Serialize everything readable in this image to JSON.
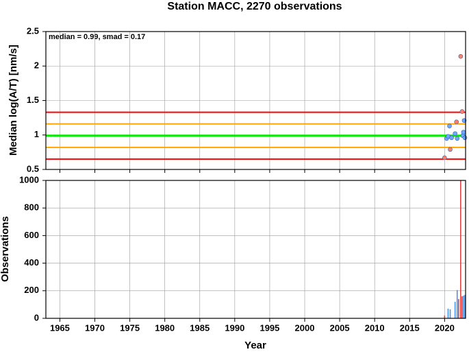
{
  "chart_data": [
    {
      "type": "scatter",
      "title": "Station MACC, 2270 observations",
      "ylabel": "Median log(A/T) [nm/s]",
      "annotation": "median = 0.99, smad = 0.17",
      "x": [
        2020.0,
        2020.3,
        2020.5,
        2020.7,
        2020.8,
        2021.0,
        2021.5,
        2021.7,
        2021.8,
        2022.3,
        2022.5,
        2022.6,
        2022.7,
        2022.8,
        2022.9
      ],
      "values": [
        0.67,
        0.95,
        0.98,
        1.13,
        0.79,
        0.96,
        1.02,
        1.19,
        0.95,
        2.14,
        1.34,
        0.99,
        1.04,
        1.21,
        0.96
      ],
      "colors": [
        "#ff7f6e",
        "#6fa8ff",
        "#6fa8ff",
        "#6fa8ff",
        "#ff7f6e",
        "#6fa8ff",
        "#6fa8ff",
        "#ff7f6e",
        "#6fa8ff",
        "#ff7f6e",
        "#ff7f6e",
        "#6fa8ff",
        "#6fa8ff",
        "#6fa8ff",
        "#6fa8ff"
      ],
      "hlines": [
        {
          "value": 1.33,
          "color": "#ff0000"
        },
        {
          "value": 1.16,
          "color": "#ffa500"
        },
        {
          "value": 0.99,
          "color": "#00ee00"
        },
        {
          "value": 0.82,
          "color": "#ffa500"
        },
        {
          "value": 0.65,
          "color": "#ff0000"
        }
      ],
      "xlim": [
        1963,
        2023
      ],
      "xticks": [
        1965,
        1970,
        1975,
        1980,
        1985,
        1990,
        1995,
        2000,
        2005,
        2010,
        2015,
        2020
      ],
      "ylim": [
        0.5,
        2.5
      ],
      "yticks": [
        0.5,
        1.0,
        1.5,
        2.0,
        2.5
      ],
      "grid": true
    },
    {
      "type": "bar",
      "ylabel": "Observations",
      "xlabel": "Year",
      "x": [
        2020.0,
        2020.5,
        2020.8,
        2021.5,
        2021.8,
        2022.0,
        2022.3,
        2022.5,
        2022.7,
        2022.9
      ],
      "values": [
        20,
        70,
        65,
        120,
        205,
        140,
        1000,
        160,
        165,
        170
      ],
      "colors": [
        "#e04040",
        "#4a90e2",
        "#4a90e2",
        "#4a90e2",
        "#4a90e2",
        "#e04040",
        "#e04040",
        "#e04040",
        "#4a90e2",
        "#4a90e2"
      ],
      "xlim": [
        1963,
        2023
      ],
      "xticks": [
        1965,
        1970,
        1975,
        1980,
        1985,
        1990,
        1995,
        2000,
        2005,
        2010,
        2015,
        2020
      ],
      "ylim": [
        0,
        1000
      ],
      "yticks": [
        0,
        200,
        400,
        600,
        800,
        1000
      ],
      "grid": true
    }
  ]
}
